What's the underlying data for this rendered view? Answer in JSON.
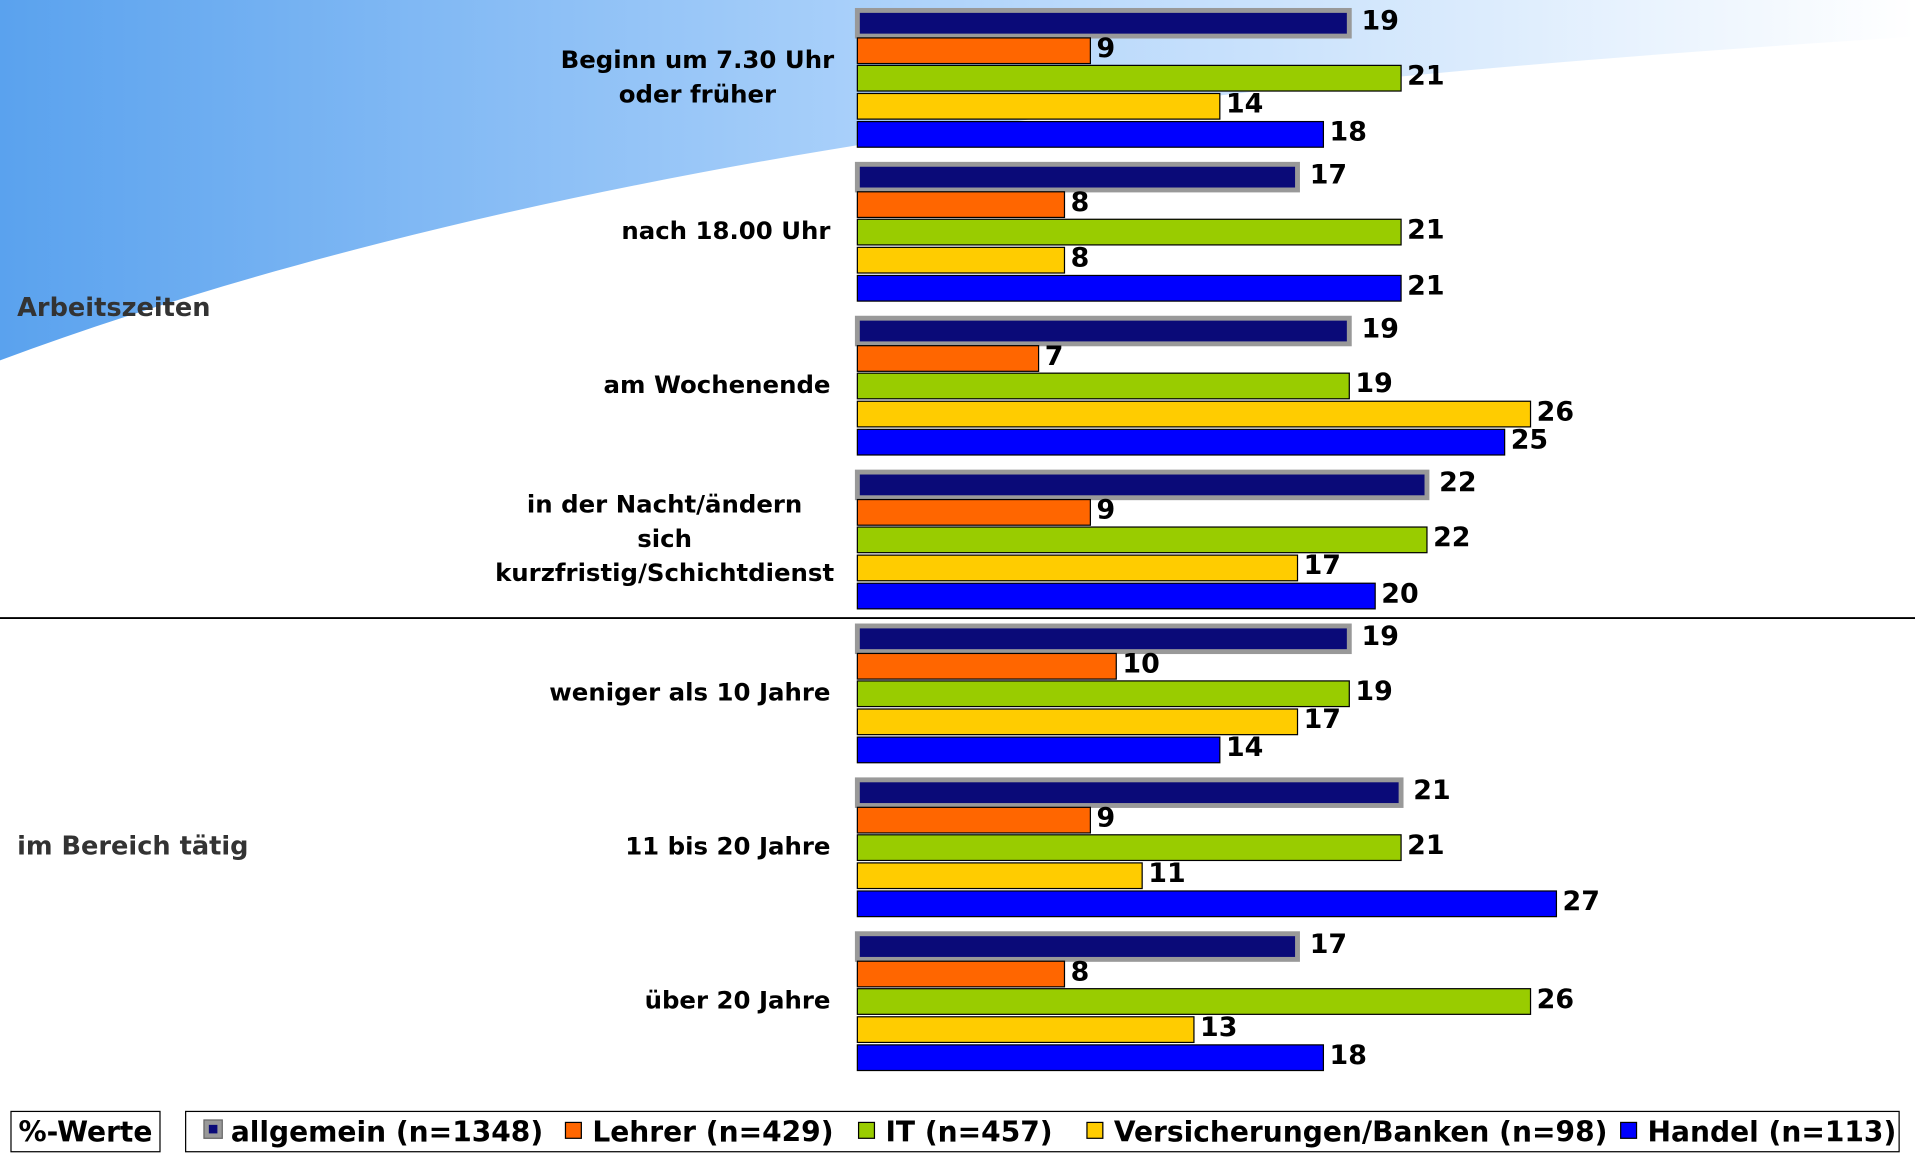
{
  "chart_data": {
    "type": "hbar",
    "sections": [
      {
        "label": "Arbeitszeiten",
        "categories": [
          [
            "Beginn um 7.30 Uhr",
            "oder früher"
          ],
          [
            "nach 18.00 Uhr"
          ],
          [
            "am Wochenende"
          ],
          [
            "in der Nacht/ändern",
            "sich",
            "kurzfristig/Schichtdienst"
          ]
        ]
      },
      {
        "label": "im Bereich tätig",
        "categories": [
          [
            "weniger als 10 Jahre"
          ],
          [
            "11 bis 20 Jahre"
          ],
          [
            "über 20 Jahre"
          ]
        ]
      }
    ],
    "series": [
      {
        "name": "allgemein (n=1348)",
        "color": "#0a0a78",
        "values": [
          19,
          17,
          19,
          22,
          19,
          21,
          17
        ]
      },
      {
        "name": "Lehrer (n=429)",
        "color": "#ff6600",
        "values": [
          9,
          8,
          7,
          9,
          10,
          9,
          8
        ]
      },
      {
        "name": "IT (n=457)",
        "color": "#99cc00",
        "values": [
          21,
          21,
          19,
          22,
          19,
          21,
          26
        ]
      },
      {
        "name": "Versicherungen/Banken (n=98)",
        "color": "#ffcc00",
        "values": [
          14,
          8,
          26,
          17,
          17,
          11,
          13
        ]
      },
      {
        "name": "Handel (n=113)",
        "color": "#0000ff",
        "values": [
          18,
          21,
          25,
          20,
          14,
          27,
          18
        ]
      }
    ],
    "xlim": [
      0,
      40
    ],
    "legend_title": "%-Werte"
  }
}
